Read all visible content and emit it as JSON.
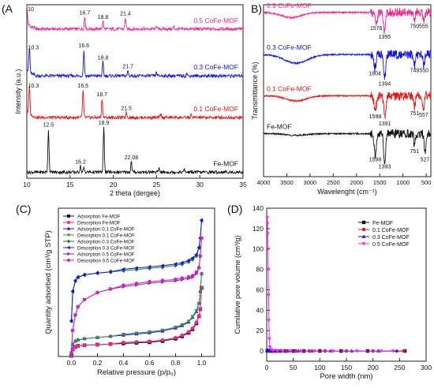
{
  "panels": {
    "A": "(A",
    "B": "B)",
    "C": "(C)",
    "D": "(D)"
  },
  "chart_data": [
    {
      "type": "line",
      "panel": "A",
      "xlabel": "2 theta (dergee)",
      "ylabel": "Intensity (a.u.)",
      "xlim": [
        10,
        35
      ],
      "x_ticks": [
        "10",
        "15",
        "20",
        "25",
        "30",
        "35"
      ],
      "traces": [
        {
          "name": "0.5 CoFe-MOF",
          "color": "#ff1f8a",
          "base": 0.86,
          "peaks": [
            [
              10.0,
              0.1
            ],
            [
              16.7,
              0.07
            ],
            [
              18.8,
              0.045
            ],
            [
              21.4,
              0.065
            ],
            [
              25.0,
              0.02
            ],
            [
              27.0,
              0.015
            ]
          ],
          "peak_labels": [
            {
              "x": 10.0,
              "label": "10"
            },
            {
              "x": 16.7,
              "label": "16.7"
            },
            {
              "x": 18.8,
              "label": "18.8"
            },
            {
              "x": 21.4,
              "label": "21.4"
            }
          ]
        },
        {
          "name": "0.3 CoFe-MOF",
          "color": "#1010ff",
          "base": 0.59,
          "peaks": [
            [
              10.3,
              0.14
            ],
            [
              16.6,
              0.15
            ],
            [
              18.8,
              0.08
            ],
            [
              21.7,
              0.03
            ],
            [
              25.0,
              0.02
            ],
            [
              28.5,
              0.015
            ]
          ],
          "peak_labels": [
            {
              "x": 10.3,
              "label": "10.3"
            },
            {
              "x": 16.6,
              "label": "16.6"
            },
            {
              "x": 18.8,
              "label": "18.8"
            },
            {
              "x": 21.7,
              "label": "21.7"
            }
          ]
        },
        {
          "name": "0.1 CoFe-MOF",
          "color": "#ee1111",
          "base": 0.35,
          "peaks": [
            [
              10.3,
              0.16
            ],
            [
              16.5,
              0.16
            ],
            [
              18.7,
              0.11
            ],
            [
              21.5,
              0.03
            ],
            [
              25.5,
              0.02
            ],
            [
              29.0,
              0.015
            ]
          ],
          "peak_labels": [
            {
              "x": 10.3,
              "label": "10.3"
            },
            {
              "x": 16.5,
              "label": "16.5"
            },
            {
              "x": 18.7,
              "label": "18.7"
            },
            {
              "x": 21.5,
              "label": "21.5"
            }
          ]
        },
        {
          "name": "Fe-MOF",
          "color": "#111111",
          "base": 0.035,
          "peaks": [
            [
              12.5,
              0.25
            ],
            [
              16.2,
              0.035
            ],
            [
              16.6,
              0.025
            ],
            [
              18.9,
              0.26
            ],
            [
              22.08,
              0.06
            ],
            [
              25.3,
              0.025
            ],
            [
              28.2,
              0.015
            ]
          ],
          "peak_labels": [
            {
              "x": 12.5,
              "label": "12.5"
            },
            {
              "x": 16.2,
              "label": "16.2"
            },
            {
              "x": 18.9,
              "label": "18.9"
            },
            {
              "x": 22.08,
              "label": "22.08"
            }
          ]
        }
      ]
    },
    {
      "type": "line",
      "panel": "B",
      "xlabel": "Wavelenght (cm⁻¹)",
      "ylabel": "Transmittance (%)",
      "xlim": [
        4000,
        400
      ],
      "x_ticks": [
        "4000",
        "3500",
        "3000",
        "2500",
        "2000",
        "1500",
        "1000",
        "500"
      ],
      "traces": [
        {
          "name": "0.5 CoFe-MOF",
          "color": "#ff1f8a",
          "base": 0.955,
          "dips": [
            [
              3400,
              0.03,
              300
            ],
            [
              1576,
              0.06,
              35
            ],
            [
              1395,
              0.11,
              30
            ],
            [
              750,
              0.05,
              20
            ],
            [
              555,
              0.05,
              25
            ]
          ],
          "dip_labels": [
            {
              "x": 1576,
              "label": "1576"
            },
            {
              "x": 1395,
              "label": "1395"
            },
            {
              "x": 750,
              "label": "750"
            },
            {
              "x": 555,
              "label": "555"
            }
          ]
        },
        {
          "name": "0.3 CoFe-MOF",
          "color": "#1010ff",
          "base": 0.71,
          "dips": [
            [
              3300,
              0.05,
              350
            ],
            [
              1604,
              0.08,
              35
            ],
            [
              1394,
              0.14,
              30
            ],
            [
              749,
              0.06,
              20
            ],
            [
              550,
              0.06,
              25
            ]
          ],
          "dip_labels": [
            {
              "x": 1604,
              "label": "1604"
            },
            {
              "x": 1394,
              "label": "1394"
            },
            {
              "x": 749,
              "label": "749"
            },
            {
              "x": 550,
              "label": "550"
            }
          ]
        },
        {
          "name": "0.1 CoFe-MOF",
          "color": "#ee1111",
          "base": 0.47,
          "dips": [
            [
              3300,
              0.03,
              300
            ],
            [
              1598,
              0.09,
              35
            ],
            [
              1391,
              0.13,
              30
            ],
            [
              751,
              0.07,
              20
            ],
            [
              557,
              0.08,
              25
            ]
          ],
          "dip_labels": [
            {
              "x": 1598,
              "label": "1598"
            },
            {
              "x": 1391,
              "label": "1391"
            },
            {
              "x": 751,
              "label": "751"
            },
            {
              "x": 557,
              "label": "557"
            }
          ]
        },
        {
          "name": "Fe-MOF",
          "color": "#111111",
          "base": 0.25,
          "dips": [
            [
              3300,
              0.01,
              300
            ],
            [
              1598,
              0.12,
              35
            ],
            [
              1393,
              0.16,
              30
            ],
            [
              751,
              0.07,
              20
            ],
            [
              527,
              0.12,
              25
            ]
          ],
          "dip_labels": [
            {
              "x": 1598,
              "label": "1598"
            },
            {
              "x": 1393,
              "label": "1393"
            },
            {
              "x": 751,
              "label": "751"
            },
            {
              "x": 527,
              "label": "527"
            }
          ]
        }
      ]
    },
    {
      "type": "line",
      "panel": "C",
      "xlabel": "Relative pressure (p/p₀)",
      "ylabel": "Quantity adsorbed (cm³/g STP)",
      "xlim": [
        -0.1,
        1.1
      ],
      "x_ticks": [
        "0.0",
        "0.2",
        "0.4",
        "0.6",
        "0.8",
        "1.0"
      ],
      "legend_position": "top-left",
      "x": [
        0.0,
        0.01,
        0.03,
        0.05,
        0.1,
        0.2,
        0.3,
        0.4,
        0.5,
        0.6,
        0.7,
        0.8,
        0.85,
        0.9,
        0.93,
        0.96,
        0.98,
        0.99,
        1.0
      ],
      "series": [
        {
          "name": "Adsorption Fe-MOF",
          "color": "#111111",
          "marker": "square",
          "values": [
            0.5,
            6,
            8,
            9,
            9.5,
            10,
            10.5,
            11,
            11.5,
            12,
            13,
            15,
            17,
            20,
            23,
            28,
            34,
            40,
            58
          ]
        },
        {
          "name": "Desorption Fe-MOF",
          "color": "#ff1f8a",
          "marker": "circle",
          "values": [
            0.5,
            6,
            8,
            9,
            9.5,
            10,
            10.5,
            11,
            11.5,
            12,
            13,
            15,
            17,
            20,
            23,
            28,
            34,
            40,
            58
          ]
        },
        {
          "name": "Adsorption 0.1 CoFe-MOF",
          "color": "#1010ff",
          "marker": "triangle",
          "values": [
            2,
            10,
            13,
            14,
            15,
            16,
            17,
            18,
            19,
            20,
            21.5,
            24,
            26,
            29,
            33,
            38,
            45,
            55,
            70
          ]
        },
        {
          "name": "Desorption 0.1 CoFe-MOF",
          "color": "#3d8f3d",
          "marker": "triangle-down",
          "values": [
            2,
            10,
            13,
            14,
            15,
            16,
            17,
            18,
            19,
            20,
            21.5,
            24,
            26,
            29,
            33,
            38,
            45,
            55,
            70
          ]
        },
        {
          "name": "Adsorption 0.3 CoFe-MOF",
          "color": "#1d7f1d",
          "marker": "diamond",
          "values": [
            30,
            55,
            64,
            67,
            69,
            70.5,
            71.5,
            72.5,
            73.5,
            74.5,
            75.5,
            77,
            78,
            80,
            82,
            85,
            92,
            100,
            115
          ]
        },
        {
          "name": "Desorption 0.3 CoFe-MOF",
          "color": "#1010ff",
          "marker": "triangle-left",
          "values": [
            30,
            55,
            64,
            67,
            69,
            70.5,
            71.5,
            72.5,
            73.5,
            74.5,
            75.5,
            77,
            78,
            80,
            82,
            85,
            92,
            100,
            115
          ]
        },
        {
          "name": "Adsorption 0.5 CoFe-MOF",
          "color": "#8a1ab0",
          "marker": "triangle-right",
          "values": [
            3,
            22,
            35,
            42,
            48,
            54,
            57,
            59,
            60.5,
            62,
            63,
            64,
            65,
            66,
            67,
            70,
            75,
            85,
            100
          ]
        },
        {
          "name": "Desorption 0.5 CoFe-MOF",
          "color": "#cc22cc",
          "marker": "hexagon",
          "values": [
            3,
            22,
            35,
            42,
            48,
            54,
            57,
            59,
            60.5,
            62,
            63,
            64,
            65,
            66,
            67,
            70,
            75,
            85,
            100
          ]
        }
      ]
    },
    {
      "type": "scatter",
      "panel": "D",
      "xlabel": "Pore width (nm)",
      "ylabel": "Cumilative pore volume (cm³/g)",
      "xlim": [
        0,
        300
      ],
      "ylim": [
        -10,
        140
      ],
      "x_ticks": [
        0,
        50,
        100,
        150,
        200,
        250,
        300
      ],
      "y_ticks": [
        0,
        20,
        40,
        60,
        80,
        100,
        120,
        140
      ],
      "legend_position": "top-right",
      "series": [
        {
          "name": "Fe-MOF",
          "color": "#111111",
          "marker": "square",
          "x": [
            1,
            2,
            3,
            5,
            8,
            12,
            18,
            25,
            35,
            50,
            70,
            100,
            140,
            190,
            260
          ],
          "y": [
            0.3,
            0.2,
            0.1,
            0.05,
            0.02,
            0.01,
            0,
            0,
            0,
            0,
            0,
            0,
            0,
            0,
            0
          ]
        },
        {
          "name": "0.1 CoFe-MOF",
          "color": "#ee1111",
          "marker": "circle",
          "x": [
            1,
            2,
            3,
            5,
            8,
            12,
            18,
            26,
            38,
            55,
            80,
            110,
            150,
            200,
            258
          ],
          "y": [
            0.5,
            0.3,
            0.2,
            0.1,
            0.05,
            0.02,
            0,
            0,
            0,
            0,
            0,
            0,
            0,
            0,
            0
          ]
        },
        {
          "name": "0.3 CoFe-MOF",
          "color": "#1010ff",
          "marker": "triangle",
          "x": [
            1,
            2,
            3,
            5,
            8,
            12,
            18,
            27,
            40,
            60,
            85,
            120,
            160,
            210,
            245
          ],
          "y": [
            0.8,
            0.5,
            0.3,
            0.15,
            0.05,
            0.02,
            0,
            0,
            0,
            0,
            0,
            0,
            0,
            0,
            0
          ]
        },
        {
          "name": "0.5 CoFe-MOF",
          "color": "#ff22ff",
          "marker": "triangle-down",
          "x": [
            1,
            1.5,
            2,
            2.5,
            3,
            3.5,
            4,
            5,
            6,
            8,
            12,
            20,
            30,
            45,
            65,
            90,
            125,
            170,
            215,
            238
          ],
          "y": [
            131,
            125,
            115,
            100,
            80,
            55,
            30,
            12,
            4,
            1.5,
            0.5,
            0.2,
            0,
            0,
            0,
            0,
            0,
            0,
            0,
            0
          ]
        }
      ]
    }
  ]
}
